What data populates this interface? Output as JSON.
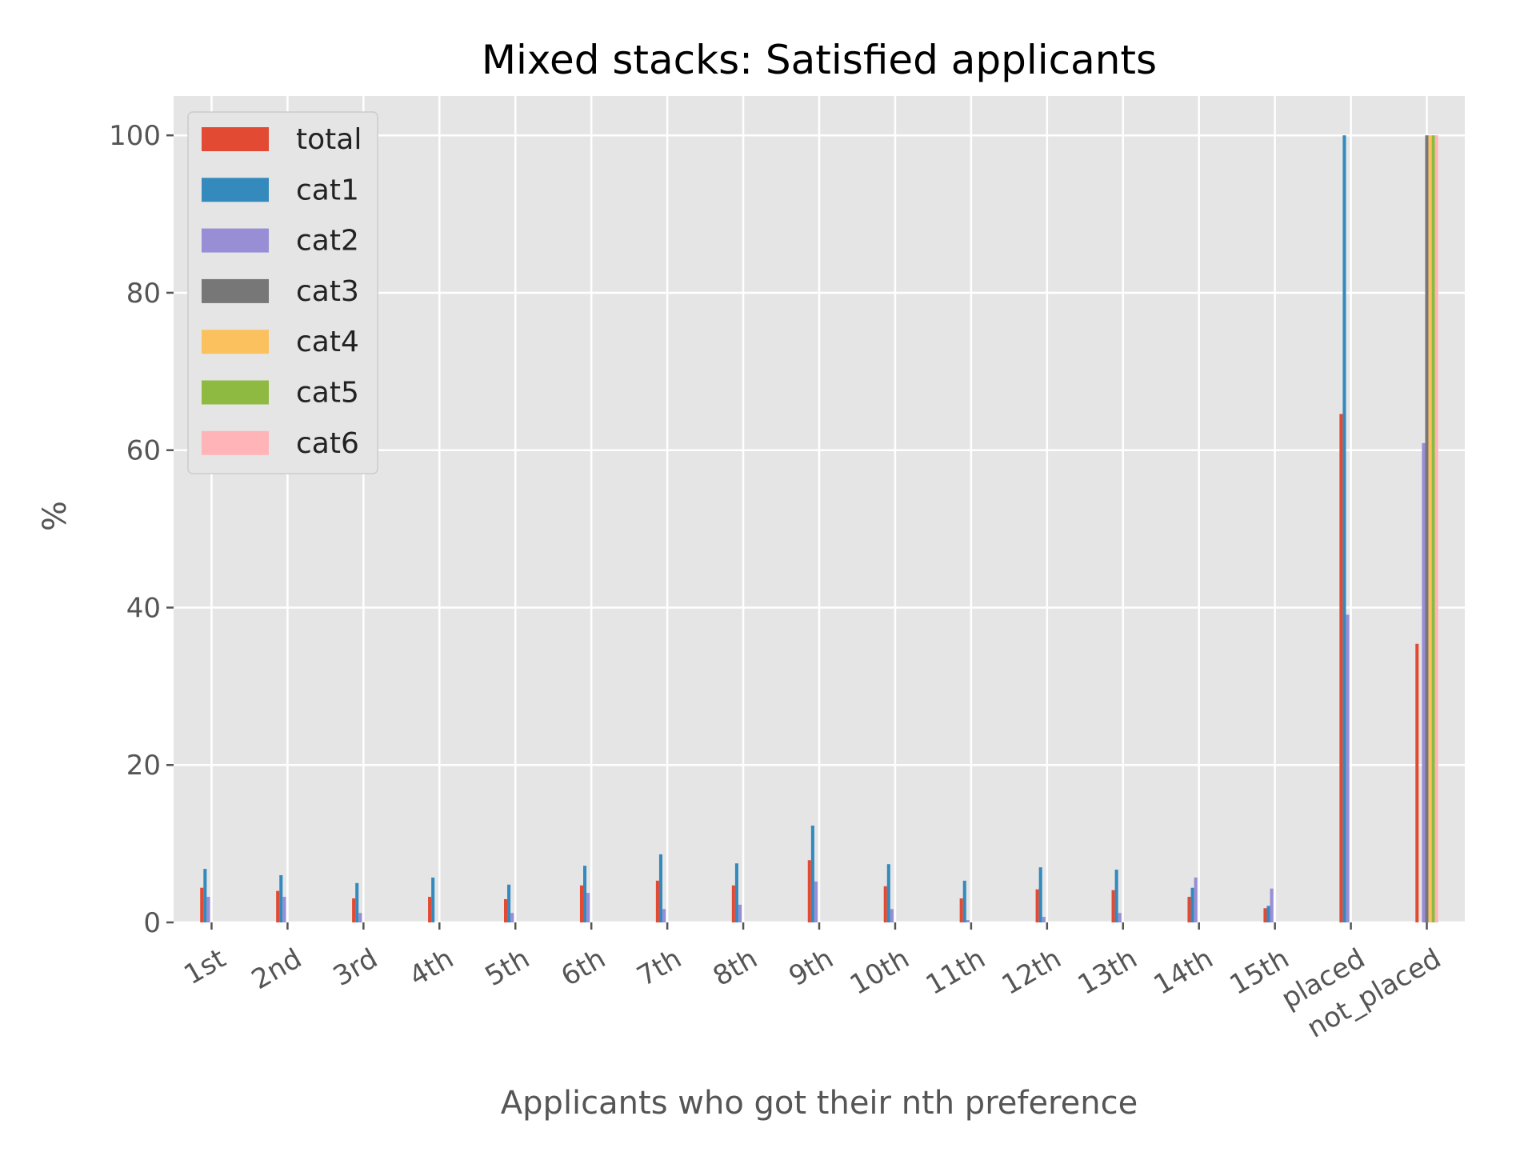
{
  "chart_data": {
    "type": "bar",
    "title": "Mixed stacks: Satisfied applicants",
    "xlabel": "Applicants who got their nth preference",
    "ylabel": "%",
    "ylim": [
      0,
      105
    ],
    "yticks": [
      0,
      20,
      40,
      60,
      80,
      100
    ],
    "grid": true,
    "legend_position": "top-left",
    "categories": [
      "1st",
      "2nd",
      "3rd",
      "4th",
      "5th",
      "6th",
      "7th",
      "8th",
      "9th",
      "10th",
      "11th",
      "12th",
      "13th",
      "14th",
      "15th",
      "placed",
      "not_placed"
    ],
    "series": [
      {
        "name": "total",
        "color": "#E24A33",
        "values": [
          4.4,
          4.0,
          3.05,
          3.25,
          2.95,
          4.7,
          5.3,
          4.7,
          7.9,
          4.6,
          3.05,
          4.2,
          4.1,
          3.25,
          1.8,
          64.6,
          35.4
        ]
      },
      {
        "name": "cat1",
        "color": "#348ABD",
        "values": [
          6.8,
          6.0,
          5.0,
          5.7,
          4.8,
          7.2,
          8.65,
          7.5,
          12.3,
          7.4,
          5.3,
          7.0,
          6.7,
          4.4,
          2.1,
          100,
          0
        ]
      },
      {
        "name": "cat2",
        "color": "#988ED5",
        "values": [
          3.25,
          3.25,
          1.2,
          0,
          1.2,
          3.75,
          1.7,
          2.25,
          5.2,
          1.7,
          0.3,
          0.7,
          1.2,
          5.7,
          4.3,
          39.1,
          60.9
        ]
      },
      {
        "name": "cat3",
        "color": "#777777",
        "values": [
          0,
          0,
          0,
          0,
          0,
          0,
          0,
          0,
          0,
          0,
          0,
          0,
          0,
          0,
          0,
          0,
          100
        ]
      },
      {
        "name": "cat4",
        "color": "#FBC15E",
        "values": [
          0,
          0,
          0,
          0,
          0,
          0,
          0,
          0,
          0,
          0,
          0,
          0,
          0,
          0,
          0,
          0,
          100
        ]
      },
      {
        "name": "cat5",
        "color": "#8EBA42",
        "values": [
          0,
          0,
          0,
          0,
          0,
          0,
          0,
          0,
          0,
          0,
          0,
          0,
          0,
          0,
          0,
          0,
          100
        ]
      },
      {
        "name": "cat6",
        "color": "#FFB5B8",
        "values": [
          0,
          0,
          0,
          0,
          0,
          0,
          0,
          0,
          0,
          0,
          0,
          0,
          0,
          0,
          0,
          0,
          100
        ]
      }
    ]
  }
}
